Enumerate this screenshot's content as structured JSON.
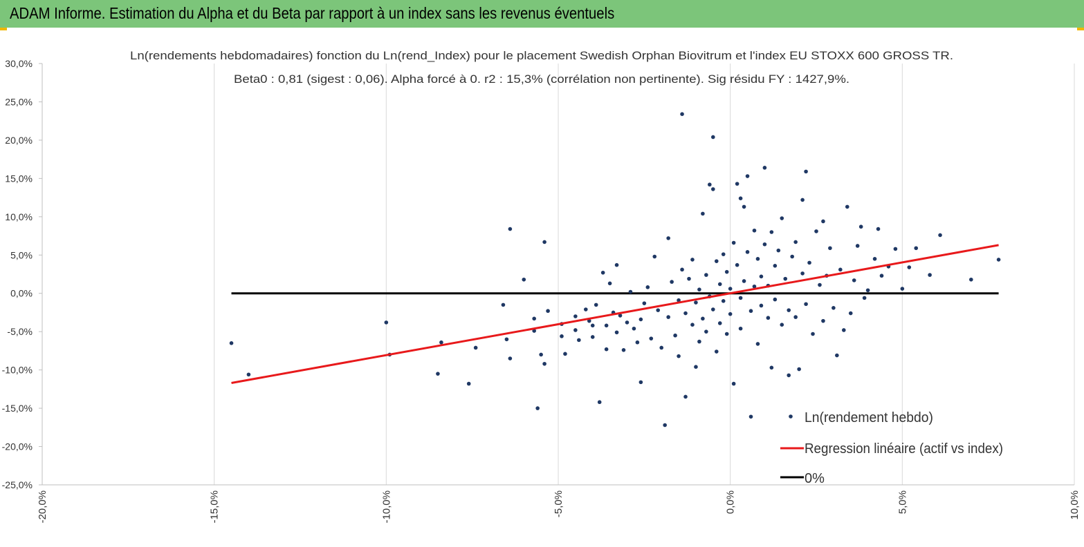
{
  "header": {
    "title": "ADAM Informe. Estimation du Alpha et du Beta par rapport à un index sans les revenus éventuels"
  },
  "colors": {
    "banner": "#7cc57a",
    "points": "#1f3864",
    "regression": "#e8191b",
    "zero_line": "#000000",
    "accent": "#f0b700"
  },
  "chart_data": {
    "type": "scatter",
    "title": "Ln(rendements hebdomadaires) fonction du Ln(rend_Index) pour le placement Swedish Orphan Biovitrum   et l'index EU STOXX 600 GROSS TR.",
    "subtitle": "Beta0 : 0,81 (sigest : 0,06). Alpha forcé à 0. r2 : 15,3% (corrélation non pertinente). Sig résidu FY : 1427,9%.",
    "xlabel": "",
    "ylabel": "",
    "xlim": [
      -20,
      10
    ],
    "ylim": [
      -25,
      30
    ],
    "x_ticks": [
      "-20,0%",
      "-15,0%",
      "-10,0%",
      "-5,0%",
      "0,0%",
      "5,0%",
      "10,0%"
    ],
    "y_ticks": [
      "30,0%",
      "25,0%",
      "20,0%",
      "15,0%",
      "10,0%",
      "5,0%",
      "0,0%",
      "-5,0%",
      "-10,0%",
      "-15,0%",
      "-20,0%",
      "-25,0%"
    ],
    "grid": "vertical",
    "legend_position": "bottom-right",
    "series": [
      {
        "name": "Ln(rendement hebdo)",
        "kind": "scatter",
        "points": [
          [
            -14.5,
            -6.5
          ],
          [
            -14.0,
            -10.6
          ],
          [
            -10.0,
            -3.8
          ],
          [
            -9.9,
            -8.0
          ],
          [
            -8.5,
            -10.5
          ],
          [
            -8.4,
            -6.4
          ],
          [
            -7.6,
            -11.8
          ],
          [
            -7.4,
            -7.1
          ],
          [
            -6.6,
            -1.5
          ],
          [
            -6.5,
            -6.0
          ],
          [
            -6.4,
            -8.5
          ],
          [
            -6.4,
            8.4
          ],
          [
            -6.0,
            1.8
          ],
          [
            -5.7,
            -3.3
          ],
          [
            -5.7,
            -4.9
          ],
          [
            -5.6,
            -15.0
          ],
          [
            -5.5,
            -8.0
          ],
          [
            -5.4,
            6.7
          ],
          [
            -5.4,
            -9.2
          ],
          [
            -5.3,
            -2.3
          ],
          [
            -4.9,
            -4.0
          ],
          [
            -4.9,
            -5.6
          ],
          [
            -4.8,
            -7.9
          ],
          [
            -4.5,
            -3.0
          ],
          [
            -4.5,
            -4.8
          ],
          [
            -4.4,
            -6.1
          ],
          [
            -4.2,
            -2.1
          ],
          [
            -4.1,
            -3.6
          ],
          [
            -4.0,
            -5.7
          ],
          [
            -4.0,
            -4.2
          ],
          [
            -3.9,
            -1.5
          ],
          [
            -3.8,
            -14.2
          ],
          [
            -3.7,
            2.7
          ],
          [
            -3.6,
            -4.2
          ],
          [
            -3.6,
            -7.3
          ],
          [
            -3.5,
            1.3
          ],
          [
            -3.4,
            -2.5
          ],
          [
            -3.3,
            -5.1
          ],
          [
            -3.2,
            -2.9
          ],
          [
            -3.3,
            3.7
          ],
          [
            -3.1,
            -7.4
          ],
          [
            -3.0,
            -3.8
          ],
          [
            -2.9,
            0.2
          ],
          [
            -2.8,
            -4.6
          ],
          [
            -2.7,
            -6.4
          ],
          [
            -2.6,
            -11.6
          ],
          [
            -2.6,
            -3.4
          ],
          [
            -2.5,
            -1.3
          ],
          [
            -2.4,
            0.8
          ],
          [
            -2.3,
            -5.9
          ],
          [
            -2.2,
            4.8
          ],
          [
            -2.1,
            -2.2
          ],
          [
            -2.0,
            -7.1
          ],
          [
            -1.9,
            -17.2
          ],
          [
            -1.8,
            -3.1
          ],
          [
            -1.8,
            7.2
          ],
          [
            -1.7,
            1.5
          ],
          [
            -1.6,
            -5.5
          ],
          [
            -1.5,
            -0.9
          ],
          [
            -1.5,
            -8.2
          ],
          [
            -1.4,
            23.4
          ],
          [
            -1.4,
            3.1
          ],
          [
            -1.3,
            -13.5
          ],
          [
            -1.3,
            -2.6
          ],
          [
            -1.2,
            1.9
          ],
          [
            -1.1,
            -4.1
          ],
          [
            -1.1,
            4.4
          ],
          [
            -1.0,
            -9.6
          ],
          [
            -1.0,
            -1.2
          ],
          [
            -0.9,
            0.5
          ],
          [
            -0.9,
            -6.3
          ],
          [
            -0.8,
            10.4
          ],
          [
            -0.8,
            -3.3
          ],
          [
            -0.7,
            2.4
          ],
          [
            -0.7,
            -5.0
          ],
          [
            -0.6,
            14.2
          ],
          [
            -0.6,
            -0.4
          ],
          [
            -0.5,
            20.4
          ],
          [
            -0.5,
            13.6
          ],
          [
            -0.5,
            -2.1
          ],
          [
            -0.4,
            4.2
          ],
          [
            -0.4,
            -7.6
          ],
          [
            -0.3,
            1.2
          ],
          [
            -0.3,
            -3.9
          ],
          [
            -0.2,
            5.1
          ],
          [
            -0.2,
            -1.0
          ],
          [
            -0.1,
            -5.3
          ],
          [
            -0.1,
            2.8
          ],
          [
            0.0,
            0.6
          ],
          [
            0.0,
            -2.7
          ],
          [
            0.1,
            6.6
          ],
          [
            0.1,
            -11.8
          ],
          [
            0.2,
            14.3
          ],
          [
            0.2,
            3.7
          ],
          [
            0.3,
            12.4
          ],
          [
            0.3,
            -0.6
          ],
          [
            0.3,
            -4.6
          ],
          [
            0.4,
            11.3
          ],
          [
            0.4,
            1.6
          ],
          [
            0.5,
            5.4
          ],
          [
            0.5,
            15.3
          ],
          [
            0.6,
            -16.1
          ],
          [
            0.6,
            -2.3
          ],
          [
            0.7,
            8.2
          ],
          [
            0.7,
            0.9
          ],
          [
            0.8,
            4.5
          ],
          [
            0.8,
            -6.6
          ],
          [
            0.9,
            2.2
          ],
          [
            0.9,
            -1.6
          ],
          [
            1.0,
            16.4
          ],
          [
            1.0,
            6.4
          ],
          [
            1.1,
            -3.2
          ],
          [
            1.1,
            1.0
          ],
          [
            1.2,
            8.0
          ],
          [
            1.2,
            -9.7
          ],
          [
            1.3,
            3.6
          ],
          [
            1.3,
            -0.8
          ],
          [
            1.4,
            5.6
          ],
          [
            1.5,
            -4.1
          ],
          [
            1.5,
            9.8
          ],
          [
            1.6,
            1.9
          ],
          [
            1.7,
            -10.7
          ],
          [
            1.7,
            -2.2
          ],
          [
            1.8,
            4.8
          ],
          [
            1.9,
            -3.1
          ],
          [
            1.9,
            6.7
          ],
          [
            2.0,
            -9.9
          ],
          [
            2.1,
            12.2
          ],
          [
            2.1,
            2.6
          ],
          [
            2.2,
            15.9
          ],
          [
            2.2,
            -1.4
          ],
          [
            2.3,
            4.0
          ],
          [
            2.4,
            -5.3
          ],
          [
            2.5,
            8.1
          ],
          [
            2.6,
            1.1
          ],
          [
            2.7,
            -3.6
          ],
          [
            2.7,
            9.4
          ],
          [
            2.8,
            2.3
          ],
          [
            2.9,
            5.9
          ],
          [
            3.0,
            -1.9
          ],
          [
            3.1,
            -8.1
          ],
          [
            3.2,
            3.1
          ],
          [
            3.3,
            -4.8
          ],
          [
            3.4,
            11.3
          ],
          [
            3.5,
            -2.6
          ],
          [
            3.6,
            1.7
          ],
          [
            3.7,
            6.2
          ],
          [
            3.8,
            8.7
          ],
          [
            3.9,
            -0.6
          ],
          [
            4.0,
            0.4
          ],
          [
            4.2,
            4.5
          ],
          [
            4.3,
            8.4
          ],
          [
            4.4,
            2.3
          ],
          [
            4.6,
            3.5
          ],
          [
            4.8,
            5.8
          ],
          [
            5.0,
            0.6
          ],
          [
            5.2,
            3.4
          ],
          [
            5.4,
            5.9
          ],
          [
            5.8,
            2.4
          ],
          [
            6.1,
            7.6
          ],
          [
            7.0,
            1.8
          ],
          [
            7.8,
            4.4
          ]
        ]
      },
      {
        "name": "Regression linéaire (actif vs index)",
        "kind": "line",
        "points": [
          [
            -14.5,
            -11.7
          ],
          [
            7.8,
            6.3
          ]
        ]
      },
      {
        "name": "0%",
        "kind": "line",
        "points": [
          [
            -14.5,
            0.0
          ],
          [
            7.8,
            0.0
          ]
        ]
      }
    ]
  }
}
